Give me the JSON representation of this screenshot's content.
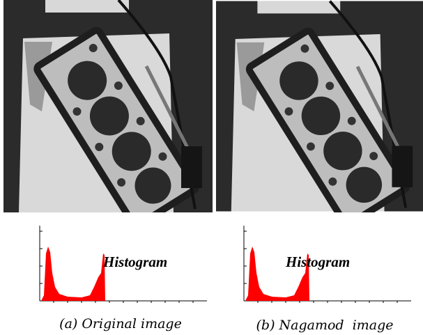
{
  "panels": [
    {
      "histogram_label": "Histogram",
      "caption": "(a) Original image"
    },
    {
      "histogram_label": "Histogram",
      "caption": "(b) Nagamod  image"
    }
  ]
}
